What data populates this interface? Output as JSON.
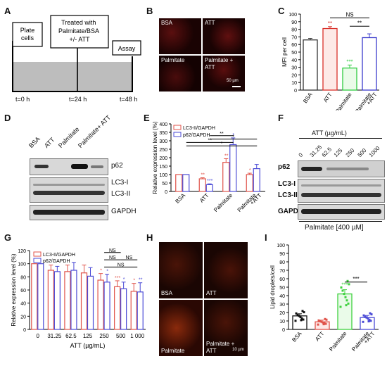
{
  "panels": {
    "A": "A",
    "B": "B",
    "C": "C",
    "D": "D",
    "E": "E",
    "F": "F",
    "G": "G",
    "H": "H",
    "I": "I"
  },
  "panel_a": {
    "step1": "Plate cells",
    "step2_lines": [
      "Treated with",
      "Palmitate/BSA",
      "+/- ATT"
    ],
    "step3": "Assay",
    "times": [
      "t=0 h",
      "t=24 h",
      "t=48 h"
    ]
  },
  "panel_b": {
    "labels": [
      "BSA",
      "ATT",
      "Palmitate",
      "Palmitate +",
      "ATT"
    ],
    "scale_bar": "50 µm"
  },
  "panel_d": {
    "lanes": [
      "BSA",
      "ATT",
      "Palmitate",
      "Palmitate+ ATT"
    ],
    "bands": [
      "p62",
      "LC3-I",
      "LC3-II",
      "GAPDH"
    ]
  },
  "panel_f": {
    "title": "ATT (µg/mL)",
    "lanes": [
      "0",
      "31.25",
      "62.5",
      "125",
      "250",
      "500",
      "1000"
    ],
    "bands": [
      "p62",
      "LC3-I",
      "LC3-II",
      "GAPDH"
    ],
    "footer": "Palmitate [400 µM]"
  },
  "panel_h": {
    "labels": [
      "BSA",
      "ATT",
      "Palmitate",
      "Palmitate +",
      "ATT"
    ],
    "scale_bar": "10 µm"
  },
  "colors": {
    "red": "#e0534a",
    "blue": "#4a4ad6",
    "green": "#3fd13f",
    "black": "#111111",
    "bar_c_bsa": "#333333",
    "bar_c_att": "#d9302a",
    "bar_c_pal": "#2ecc40",
    "bar_c_palatt": "#3a3acb"
  },
  "chart_data": [
    {
      "id": "C",
      "type": "bar",
      "ylabel": "MFI per cell",
      "ylim": [
        0,
        100
      ],
      "yticks": [
        0,
        10,
        20,
        30,
        40,
        50,
        60,
        70,
        80,
        90,
        100
      ],
      "categories": [
        "BSA",
        "ATT",
        "Palmitate",
        "Palmitate\n+ATT"
      ],
      "values": [
        66,
        81,
        29,
        69
      ],
      "errors": [
        2,
        2.5,
        4,
        5
      ],
      "significance": [
        "",
        "**",
        "***",
        ""
      ],
      "comparisons": [
        {
          "from": 1,
          "to": 3,
          "label": "NS"
        },
        {
          "from": 2,
          "to": 3,
          "label": "**"
        }
      ]
    },
    {
      "id": "E",
      "type": "bar",
      "ylabel": "Relative expression level (%)",
      "ylim": [
        0,
        400
      ],
      "yticks": [
        0,
        50,
        100,
        150,
        200,
        250,
        300,
        350,
        400
      ],
      "categories": [
        "BSA",
        "ATT",
        "Palmitate",
        "Palmitate\n+ATT"
      ],
      "series": [
        {
          "name": "LC3-II/GAPDH",
          "values": [
            100,
            75,
            172,
            100
          ],
          "errors": [
            0,
            6,
            22,
            8
          ],
          "significance": [
            "",
            "**",
            "**",
            "*"
          ]
        },
        {
          "name": "p62/GAPDH",
          "values": [
            100,
            40,
            277,
            135
          ],
          "errors": [
            0,
            5,
            40,
            25
          ],
          "significance": [
            "",
            "***",
            "*",
            ""
          ]
        }
      ],
      "comparisons": [
        "**",
        "*",
        "**",
        "*"
      ]
    },
    {
      "id": "G",
      "type": "bar",
      "xlabel": "ATT (µg/mL)",
      "ylabel": "Relative expression level (%)",
      "ylim": [
        0,
        120
      ],
      "yticks": [
        0,
        20,
        40,
        60,
        80,
        100,
        120
      ],
      "categories": [
        "0",
        "31.25",
        "62.5",
        "125",
        "250",
        "500",
        "1 000"
      ],
      "series": [
        {
          "name": "LC3-II/GAPDH",
          "values": [
            100,
            90,
            88,
            86,
            75,
            65,
            58
          ],
          "errors": [
            0,
            8,
            10,
            12,
            10,
            9,
            12
          ],
          "significance": [
            "",
            "",
            "",
            "",
            "*",
            "***",
            "*"
          ]
        },
        {
          "name": "p62/GAPDH",
          "values": [
            100,
            88,
            90,
            81,
            72,
            62,
            57
          ],
          "errors": [
            0,
            8,
            12,
            13,
            12,
            10,
            14
          ],
          "significance": [
            "",
            "",
            "",
            "",
            "*",
            "*",
            "**"
          ]
        }
      ],
      "comparisons": [
        "NS",
        "NS",
        "NS",
        "NS"
      ]
    },
    {
      "id": "I",
      "type": "bar",
      "ylabel": "Lipid droplets/cell",
      "ylim": [
        0,
        100
      ],
      "yticks": [
        0,
        10,
        20,
        30,
        40,
        50,
        60,
        70,
        80,
        90,
        100
      ],
      "categories": [
        "BSA",
        "ATT",
        "Palmitate",
        "Palmitate\n+ATT"
      ],
      "values": [
        16,
        9,
        42,
        14
      ],
      "errors": [
        2.5,
        2,
        5,
        2.5
      ],
      "significance": [
        "",
        "",
        "***",
        ""
      ],
      "comparisons": [
        {
          "from": 2,
          "to": 3,
          "label": "***"
        }
      ]
    }
  ]
}
